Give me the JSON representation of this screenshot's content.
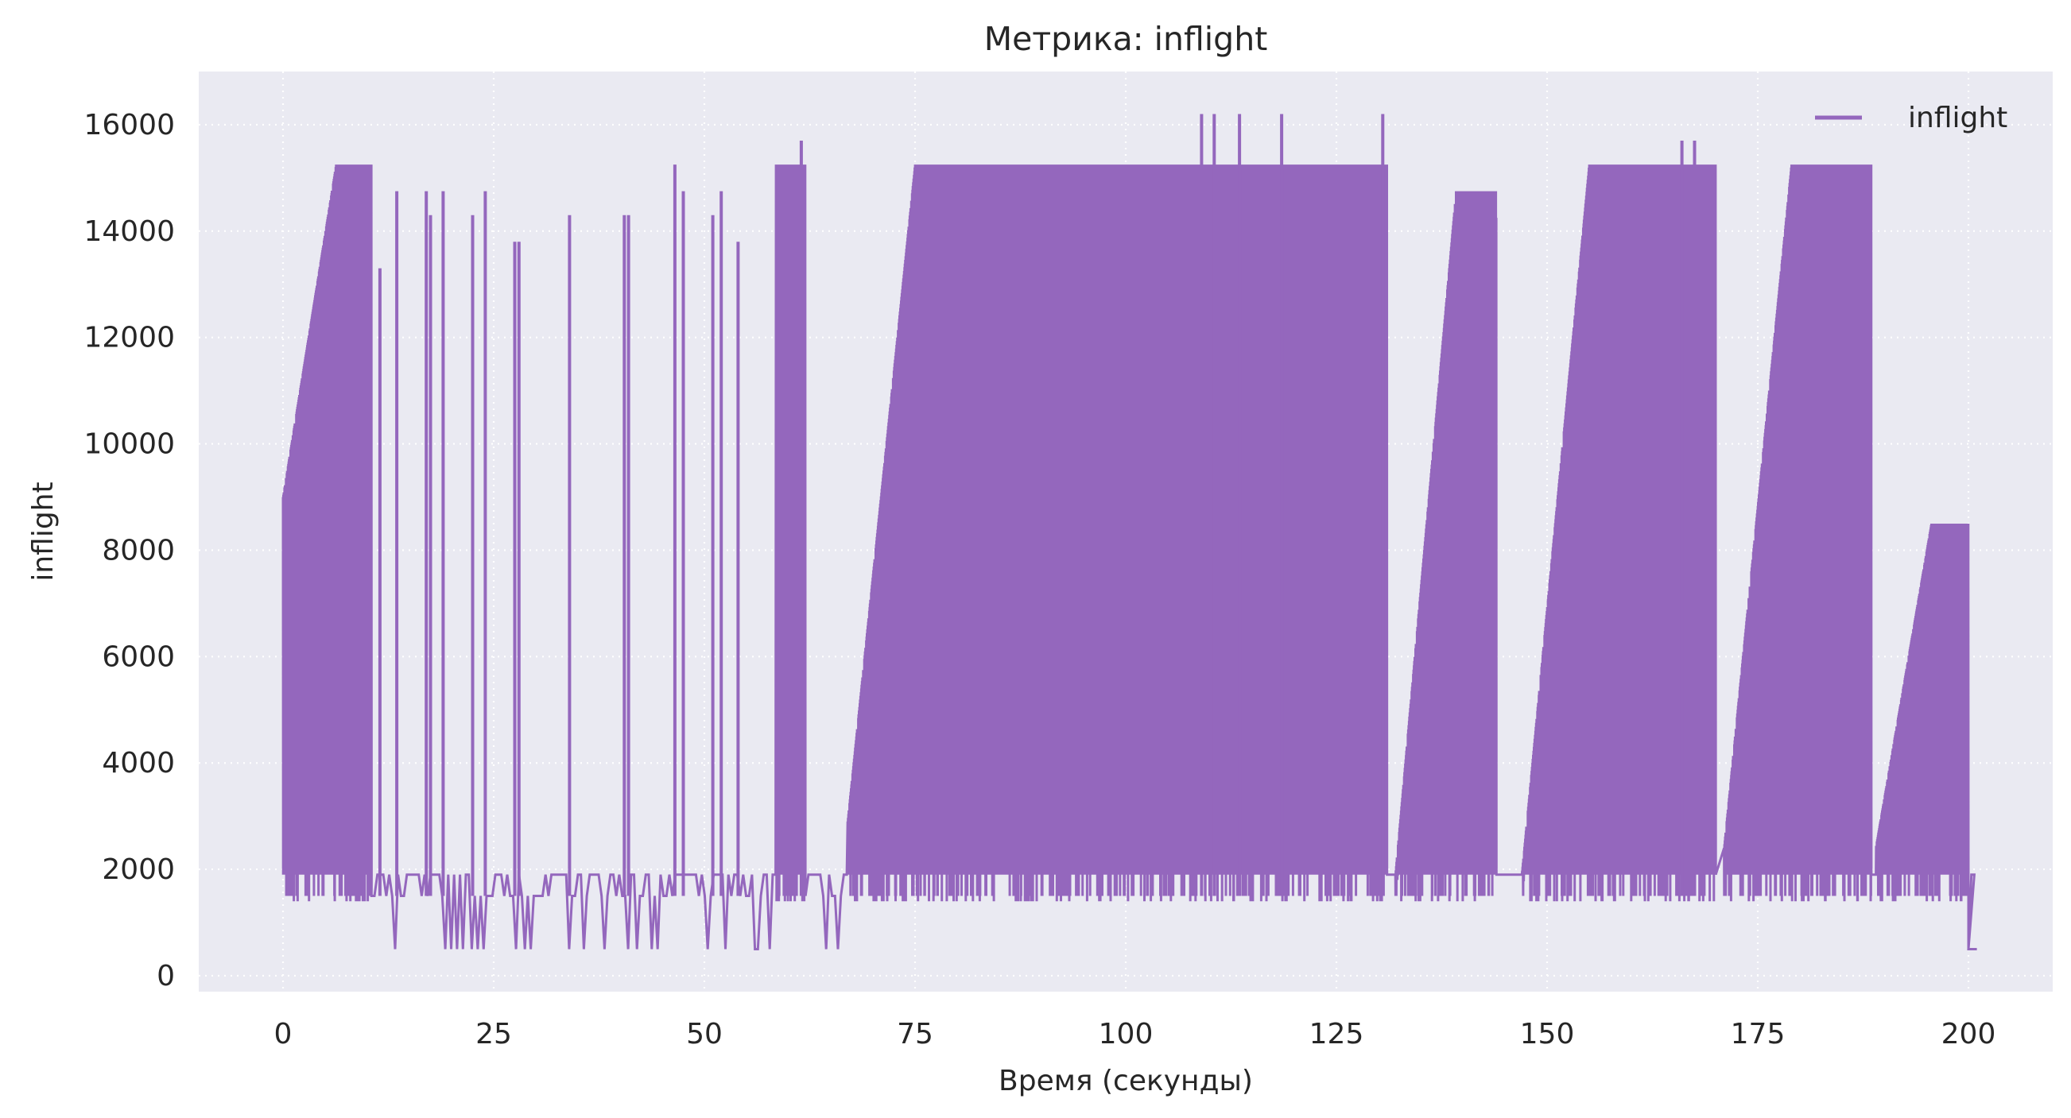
{
  "chart_data": {
    "type": "line",
    "title": "Метрика: inflight",
    "xlabel": "Время (секунды)",
    "ylabel": "inflight",
    "xlim": [
      -10,
      210
    ],
    "ylim": [
      -300,
      17000
    ],
    "x_ticks": [
      0,
      25,
      50,
      75,
      100,
      125,
      150,
      175,
      200
    ],
    "y_ticks": [
      0,
      2000,
      4000,
      6000,
      8000,
      10000,
      12000,
      14000,
      16000
    ],
    "grid": true,
    "grid_style": "dotted",
    "legend": {
      "position": "top-right",
      "entries": [
        "inflight"
      ]
    },
    "series": [
      {
        "name": "inflight",
        "color": "#9467bd",
        "low_floor": 1500,
        "low_dips": 500,
        "segments": [
          {
            "kind": "ramp",
            "x_start": 0,
            "x_end": 10.5,
            "y_start": 9000,
            "plateau": 15250,
            "spikes": []
          },
          {
            "kind": "sparse",
            "x_start": 10.5,
            "x_end": 58.5,
            "spikes": [
              [
                11.5,
                13300
              ],
              [
                13.5,
                14750
              ],
              [
                17,
                14750
              ],
              [
                17.5,
                14300
              ],
              [
                19,
                14750
              ],
              [
                22.5,
                14300
              ],
              [
                24,
                14750
              ],
              [
                27.5,
                13800
              ],
              [
                28,
                13800
              ],
              [
                34,
                14300
              ],
              [
                40.5,
                14300
              ],
              [
                41,
                14300
              ],
              [
                46.5,
                15250
              ],
              [
                47.5,
                14750
              ],
              [
                51,
                14300
              ],
              [
                52,
                14750
              ],
              [
                54,
                13800
              ]
            ]
          },
          {
            "kind": "block",
            "x_start": 58.5,
            "x_end": 62,
            "y_start": 15250,
            "plateau": 15250,
            "spikes": [
              [
                61.5,
                15700
              ]
            ]
          },
          {
            "kind": "sparse",
            "x_start": 62,
            "x_end": 67,
            "spikes": []
          },
          {
            "kind": "ramp",
            "x_start": 67,
            "x_end": 131,
            "y_start": 2900,
            "plateau": 15250,
            "spikes": [
              [
                109,
                16200
              ],
              [
                110.5,
                16200
              ],
              [
                113.5,
                16200
              ],
              [
                118.5,
                16200
              ],
              [
                130.5,
                16200
              ]
            ]
          },
          {
            "kind": "ramp",
            "x_start": 132,
            "x_end": 144,
            "y_start": 1900,
            "plateau": 14750,
            "spikes": []
          },
          {
            "kind": "ramp",
            "x_start": 147,
            "x_end": 170,
            "y_start": 1900,
            "plateau": 15250,
            "spikes": [
              [
                166,
                15700
              ],
              [
                167.5,
                15700
              ]
            ]
          },
          {
            "kind": "ramp",
            "x_start": 171,
            "x_end": 188.5,
            "y_start": 2400,
            "plateau": 15250,
            "spikes": []
          },
          {
            "kind": "ramp",
            "x_start": 189,
            "x_end": 200,
            "y_start": 2400,
            "plateau": 8500,
            "spikes": []
          },
          {
            "kind": "tail",
            "x_start": 200,
            "x_end": 201,
            "y_start": 500,
            "plateau": 500,
            "spikes": []
          }
        ]
      }
    ]
  }
}
